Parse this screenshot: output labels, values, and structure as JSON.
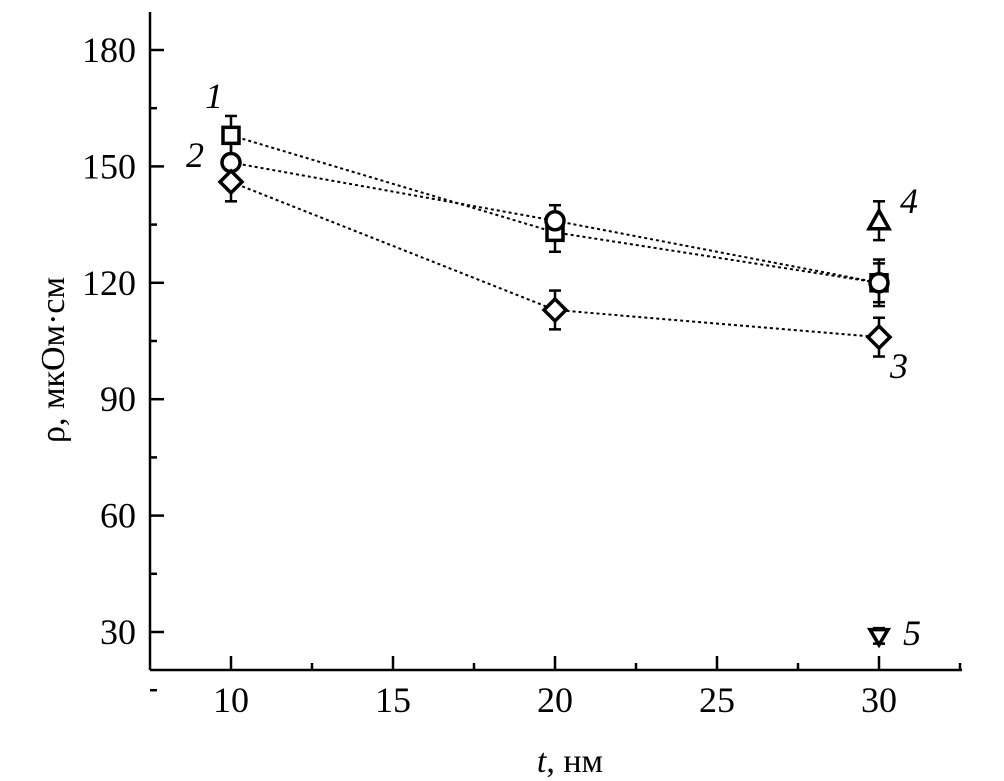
{
  "chart_data": {
    "type": "scatter",
    "title": "",
    "xlabel_italic": "t",
    "xlabel_rest": ", нм",
    "ylabel": "ρ, мкОм·см",
    "xlim": [
      7.5,
      32.5
    ],
    "ylim": [
      20,
      190
    ],
    "xticks": [
      10,
      15,
      20,
      25,
      30
    ],
    "yticks": [
      30,
      60,
      90,
      120,
      150,
      180
    ],
    "grid": false,
    "series": [
      {
        "label": "1",
        "marker": "square",
        "connected": true,
        "points": [
          {
            "x": 10,
            "y": 158,
            "err": 5
          },
          {
            "x": 20,
            "y": 133,
            "err": 5
          },
          {
            "x": 30,
            "y": 120,
            "err": 6
          }
        ]
      },
      {
        "label": "2",
        "marker": "circle",
        "connected": true,
        "points": [
          {
            "x": 10,
            "y": 151,
            "err": 5
          },
          {
            "x": 20,
            "y": 136,
            "err": 4
          },
          {
            "x": 30,
            "y": 120,
            "err": 5
          }
        ]
      },
      {
        "label": "3",
        "marker": "diamond",
        "connected": true,
        "points": [
          {
            "x": 10,
            "y": 146,
            "err": 5
          },
          {
            "x": 20,
            "y": 113,
            "err": 5
          },
          {
            "x": 30,
            "y": 106,
            "err": 5
          }
        ]
      },
      {
        "label": "4",
        "marker": "triangle-up",
        "connected": false,
        "points": [
          {
            "x": 30,
            "y": 136,
            "err": 5
          }
        ]
      },
      {
        "label": "5",
        "marker": "triangle-down",
        "connected": false,
        "points": [
          {
            "x": 30,
            "y": 29,
            "err": 2
          }
        ]
      }
    ]
  }
}
